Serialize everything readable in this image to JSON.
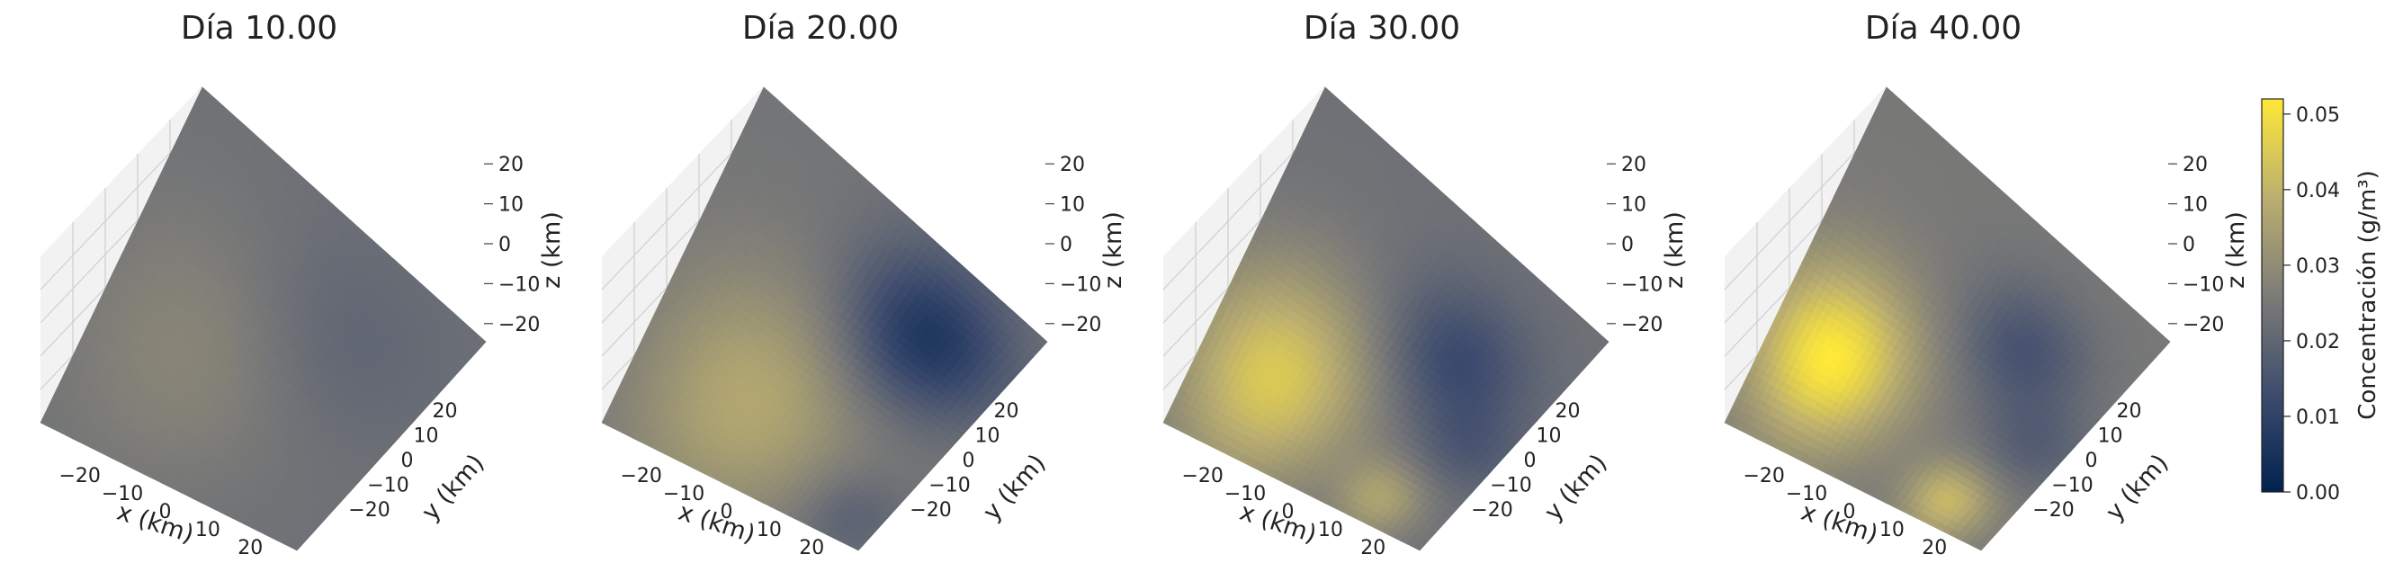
{
  "chart_data": {
    "type": "heatmap",
    "colormap": "cividis",
    "colorbar": {
      "label": "Concentración (g/m³)",
      "min": 0.0,
      "max": 0.052,
      "ticks": [
        "0.00",
        "0.01",
        "0.02",
        "0.03",
        "0.04",
        "0.05"
      ],
      "tick_values": [
        0.0,
        0.01,
        0.02,
        0.03,
        0.04,
        0.05
      ]
    },
    "axes": {
      "xlabel": "x (km)",
      "ylabel": "y (km)",
      "zlabel": "z (km)",
      "ticks": [
        "−20",
        "−10",
        "0",
        "10",
        "20"
      ],
      "tick_values": [
        -20,
        -10,
        0,
        10,
        20
      ],
      "range": [
        -25,
        25
      ]
    },
    "panels": [
      {
        "title": "Día 10.00",
        "base": 0.023,
        "blobs": [
          {
            "x": -8,
            "y": -5,
            "amp": 0.006,
            "r": 14
          },
          {
            "x": 8,
            "y": 8,
            "amp": -0.004,
            "r": 12
          }
        ]
      },
      {
        "title": "Día 20.00",
        "base": 0.024,
        "blobs": [
          {
            "x": -5,
            "y": -12,
            "amp": 0.013,
            "r": 13
          },
          {
            "x": 12,
            "y": 12,
            "amp": -0.018,
            "r": 9
          },
          {
            "x": 20,
            "y": -20,
            "amp": -0.006,
            "r": 6
          }
        ]
      },
      {
        "title": "Día 30.00",
        "base": 0.023,
        "blobs": [
          {
            "x": -12,
            "y": -12,
            "amp": 0.022,
            "r": 11
          },
          {
            "x": 10,
            "y": 6,
            "amp": -0.011,
            "r": 8
          },
          {
            "x": 14,
            "y": -20,
            "amp": 0.012,
            "r": 5
          },
          {
            "x": 20,
            "y": -5,
            "amp": -0.006,
            "r": 6
          }
        ]
      },
      {
        "title": "Día 40.00",
        "base": 0.025,
        "blobs": [
          {
            "x": -14,
            "y": -10,
            "amp": 0.027,
            "r": 9
          },
          {
            "x": 10,
            "y": 8,
            "amp": -0.01,
            "r": 7
          },
          {
            "x": 15,
            "y": -20,
            "amp": 0.016,
            "r": 5
          },
          {
            "x": 20,
            "y": -4,
            "amp": -0.007,
            "r": 6
          }
        ]
      }
    ]
  }
}
